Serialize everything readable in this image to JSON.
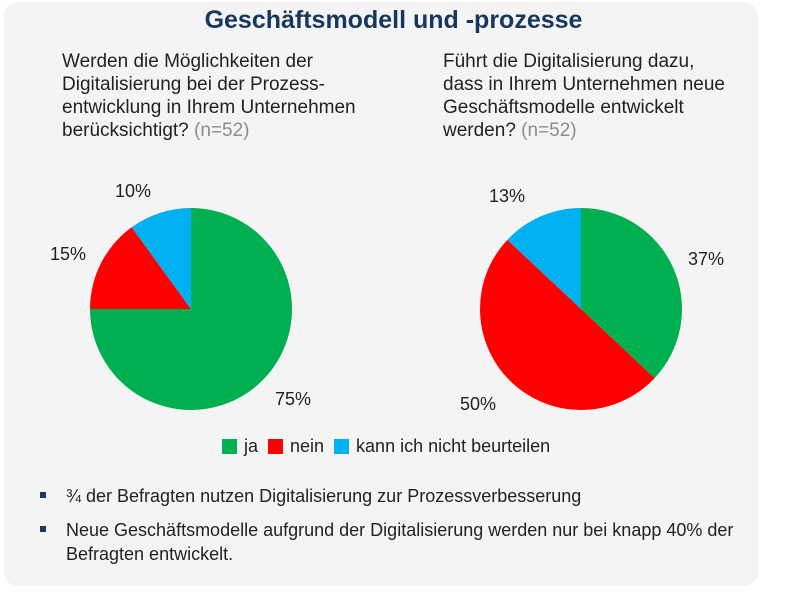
{
  "title": "Geschäftsmodell und -prozesse",
  "questions": [
    {
      "lines": [
        "Werden die Möglichkeiten der",
        "Digitalisierung bei der Prozess-",
        "entwicklung in Ihrem Unternehmen",
        "berücksichtigt?"
      ],
      "n": "(n=52)"
    },
    {
      "lines": [
        "Führt die Digitalisierung dazu,",
        "dass in Ihrem Unternehmen neue",
        "Geschäftsmodelle entwickelt",
        "werden?"
      ],
      "n": "(n=52)"
    }
  ],
  "chart_data": [
    {
      "type": "pie",
      "categories": [
        "ja",
        "nein",
        "kann ich nicht beurteilen"
      ],
      "values": [
        75,
        15,
        10
      ],
      "labels": [
        "75%",
        "15%",
        "10%"
      ],
      "colors": [
        "#00b050",
        "#ff0000",
        "#00b0f0"
      ]
    },
    {
      "type": "pie",
      "categories": [
        "ja",
        "nein",
        "kann ich nicht beurteilen"
      ],
      "values": [
        37,
        50,
        13
      ],
      "labels": [
        "37%",
        "50%",
        "13%"
      ],
      "colors": [
        "#00b050",
        "#ff0000",
        "#00b0f0"
      ]
    }
  ],
  "legend": [
    {
      "label": "ja",
      "color": "#00b050"
    },
    {
      "label": "nein",
      "color": "#ff0000"
    },
    {
      "label": "kann ich nicht beurteilen",
      "color": "#00b0f0"
    }
  ],
  "notes": [
    "¾ der Befragten nutzen Digitalisierung zur Prozessverbesserung",
    "Neue Geschäftsmodelle aufgrund der Digitalisierung werden nur bei knapp 40% der Befragten entwickelt."
  ]
}
